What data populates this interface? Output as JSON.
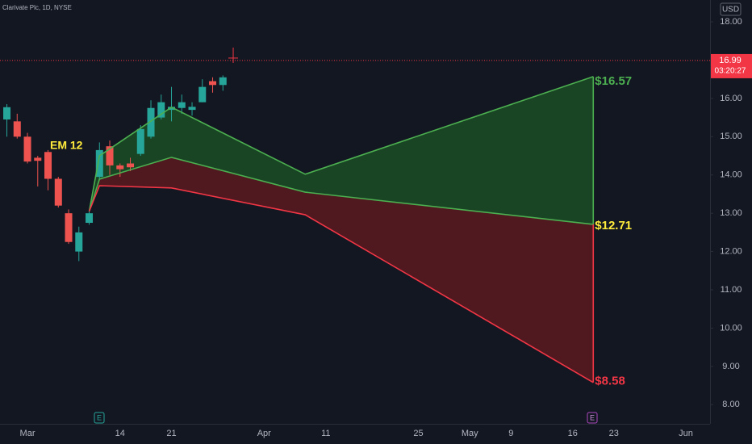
{
  "chart_data": {
    "type": "candlestick",
    "title": "Clarivate Plc, 1D, NYSE",
    "currency": "USD",
    "categories": [
      null,
      null,
      null,
      "Mar",
      null,
      null,
      null,
      null,
      null,
      null,
      null,
      null,
      "14",
      null,
      null,
      null,
      null,
      "21",
      null,
      null,
      null,
      null,
      null,
      null,
      null,
      null,
      "Apr",
      null,
      null,
      null,
      null,
      null,
      "11",
      null,
      null,
      null,
      null,
      null,
      null,
      null,
      null,
      "25",
      null,
      null,
      null,
      null,
      "May",
      null,
      null,
      null,
      "9",
      null,
      null,
      null,
      null,
      null,
      "16",
      null,
      null,
      null,
      "23",
      null,
      null,
      null,
      null,
      null,
      null,
      "Jun",
      null,
      null
    ],
    "open": [
      null,
      15.45,
      15.4,
      15.0,
      14.45,
      14.6,
      13.9,
      13.0,
      12.0,
      12.75,
      13.95,
      14.75,
      14.25,
      14.3,
      14.55,
      15.0,
      15.5,
      15.7,
      15.75,
      15.7,
      15.9,
      16.45,
      16.35,
      null,
      null,
      null,
      null,
      null,
      null,
      null,
      null,
      null,
      null,
      null,
      null,
      null,
      null,
      null,
      null,
      null,
      null,
      null,
      null,
      null,
      null,
      null,
      null,
      null,
      null,
      null,
      null,
      null,
      null,
      null,
      null,
      null,
      null,
      null,
      null,
      null,
      null,
      null,
      null,
      null,
      null,
      null,
      null,
      null,
      null,
      null
    ],
    "high": [
      null,
      15.85,
      15.6,
      15.1,
      14.5,
      14.65,
      13.95,
      13.1,
      12.65,
      13.05,
      14.85,
      14.9,
      14.3,
      14.45,
      15.3,
      15.95,
      16.1,
      16.3,
      16.1,
      15.9,
      16.5,
      16.55,
      16.6,
      null,
      null,
      null,
      null,
      null,
      null,
      null,
      null,
      null,
      null,
      null,
      null,
      null,
      null,
      null,
      null,
      null,
      null,
      null,
      null,
      null,
      null,
      null,
      null,
      null,
      null,
      null,
      null,
      null,
      null,
      null,
      null,
      null,
      null,
      null,
      null,
      null,
      null,
      null,
      null,
      null,
      null,
      null,
      null,
      null,
      null,
      null
    ],
    "low": [
      null,
      15.0,
      14.95,
      14.3,
      13.7,
      13.6,
      13.15,
      12.2,
      11.75,
      12.7,
      13.9,
      14.0,
      13.95,
      14.1,
      14.5,
      14.95,
      15.45,
      15.4,
      15.6,
      15.55,
      15.9,
      16.15,
      16.2,
      null,
      null,
      null,
      null,
      null,
      null,
      null,
      null,
      null,
      null,
      null,
      null,
      null,
      null,
      null,
      null,
      null,
      null,
      null,
      null,
      null,
      null,
      null,
      null,
      null,
      null,
      null,
      null,
      null,
      null,
      null,
      null,
      null,
      null,
      null,
      null,
      null,
      null,
      null,
      null,
      null,
      null,
      null,
      null,
      null,
      null,
      null
    ],
    "close": [
      null,
      15.77,
      15.0,
      14.35,
      14.37,
      13.9,
      13.2,
      12.25,
      12.5,
      13.0,
      14.65,
      14.25,
      14.15,
      14.2,
      15.2,
      15.75,
      15.9,
      15.78,
      15.9,
      15.78,
      16.3,
      16.35,
      16.55,
      null,
      null,
      null,
      null,
      null,
      null,
      null,
      null,
      null,
      null,
      null,
      null,
      null,
      null,
      null,
      null,
      null,
      null,
      null,
      null,
      null,
      null,
      null,
      null,
      null,
      null,
      null,
      null,
      null,
      null,
      null,
      null,
      null,
      null,
      null,
      null,
      null,
      null,
      null,
      null,
      null,
      null,
      null,
      null,
      null,
      null,
      null
    ],
    "up_color": "#26a69a",
    "down_color": "#ef5350",
    "ylim": [
      7.5,
      18.57
    ],
    "yticks": [
      {
        "value": 8,
        "label": "8.00"
      },
      {
        "value": 9,
        "label": "9.00"
      },
      {
        "value": 10,
        "label": "10.00"
      },
      {
        "value": 11,
        "label": "11.00"
      },
      {
        "value": 12,
        "label": "12.00"
      },
      {
        "value": 13,
        "label": "13.00"
      },
      {
        "value": 14,
        "label": "14.00"
      },
      {
        "value": 15,
        "label": "15.00"
      },
      {
        "value": 16,
        "label": "16.00"
      },
      {
        "value": 18,
        "label": "18.00"
      }
    ],
    "grid": false,
    "last_price": 16.99,
    "countdown": "03:20:27",
    "last_price_color": "#f23645",
    "overlays": [
      {
        "x": [
          9,
          10,
          17,
          30,
          58
        ],
        "values": [
          13.05,
          14.5,
          15.77,
          14.02,
          16.57
        ],
        "color": "#4caf50",
        "label": "$16.57",
        "label_color": "#4caf50"
      },
      {
        "x": [
          9,
          10,
          17,
          30,
          58
        ],
        "values": [
          13.05,
          13.89,
          14.46,
          13.55,
          12.71
        ],
        "color": "#4caf50",
        "label": "$12.71",
        "label_color": "#ffeb3b"
      },
      {
        "x": [
          9,
          10,
          17,
          30,
          58
        ],
        "values": [
          13.05,
          13.72,
          13.66,
          12.96,
          8.58
        ],
        "color": "#f23645",
        "label": "$8.58",
        "label_color": "#f23645"
      }
    ],
    "fills": [
      "#1b4d24",
      "#5c1a20"
    ],
    "annotation": "EM 12",
    "events": [
      "E",
      "E"
    ]
  }
}
